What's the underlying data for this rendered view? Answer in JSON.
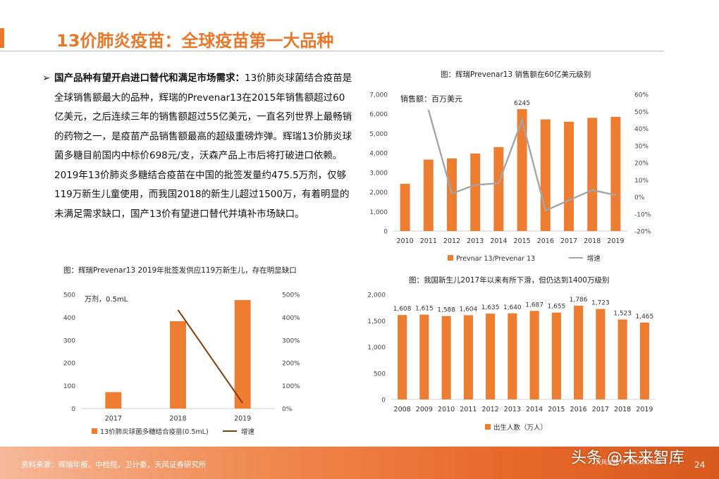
{
  "header": {
    "title": "13价肺炎疫苗：全球疫苗第一大品种",
    "accent": "#e8782a"
  },
  "body": {
    "bullet": "➢",
    "lead": "国产品种有望开启进口替代和满足市场需求：",
    "text": "13价肺炎球菌结合疫苗是全球销售额最大的品种，辉瑞的Prevenar13在2015年销售额超过60亿美元，之后连续三年的销售额超过55亿美元，一直名列世界上最畅销的药物之一，是疫苗产品销售额最高的超级重磅炸弹。辉瑞13价肺炎球菌多糖目前国内中标价698元/支，沃森产品上市后将打破进口依赖。2019年13价肺炎多糖结合疫苗在中国的批签发量约475.5万剂，仅够119万新生儿童使用，而我国2018的新生儿超过1500万，有着明显的未满足需求缺口，国产13价有望进口替代并填补市场缺口。"
  },
  "footer": {
    "source": "资料来源：辉瑞年报，中检院，卫计委，天风证券研究所",
    "logo_text": "天风证券 TF SECURITIES",
    "page_number": "24",
    "watermark": "头条 @未来智库"
  },
  "chart_data": [
    {
      "type": "bar",
      "caption": "图：辉瑞Prevenar13 销售额在60亿美元级别",
      "annotation": "销售额：百万美元",
      "categories": [
        "2010",
        "2011",
        "2012",
        "2013",
        "2014",
        "2015",
        "2016",
        "2017",
        "2018",
        "2019"
      ],
      "series": [
        {
          "name": "Prevnar 13/Prevenar 13",
          "type": "bar",
          "axis": "left",
          "color": "#ed7d31",
          "values": [
            2420,
            3660,
            3720,
            3970,
            4300,
            6245,
            5720,
            5600,
            5800,
            5850
          ]
        },
        {
          "name": "增速",
          "type": "line",
          "axis": "right",
          "color": "#a5a5a5",
          "values": [
            null,
            51,
            2,
            7,
            8,
            45,
            -8,
            -2,
            4,
            1
          ]
        }
      ],
      "data_labels": [
        {
          "index": 5,
          "text": "6245"
        }
      ],
      "ylim_left": [
        0,
        7000
      ],
      "yticks_left": [
        "0",
        "1,000",
        "2,000",
        "3,000",
        "4,000",
        "5,000",
        "6,000",
        "7,000"
      ],
      "ylim_right": [
        -20,
        60
      ],
      "yticks_right": [
        "-20%",
        "-10%",
        "0%",
        "10%",
        "20%",
        "30%",
        "40%",
        "50%",
        "60%"
      ],
      "legend": "bottom"
    },
    {
      "type": "bar",
      "caption": "图：辉瑞Prevenar13 2019年批签发供应119万新生儿，存在明显缺口",
      "annotation": "万剂，0.5mL",
      "categories": [
        "2017",
        "2018",
        "2019"
      ],
      "series": [
        {
          "name": "13价肺炎球菌多糖结合疫苗(0.5mL)",
          "type": "bar",
          "axis": "left",
          "color": "#ed7d31",
          "values": [
            72,
            383,
            475.5
          ]
        },
        {
          "name": "增速",
          "type": "line",
          "axis": "right",
          "color": "#843c0c",
          "values": [
            null,
            432,
            24
          ]
        }
      ],
      "ylim_left": [
        0,
        500
      ],
      "yticks_left": [
        "0",
        "100",
        "200",
        "300",
        "400",
        "500"
      ],
      "ylim_right": [
        0,
        500
      ],
      "yticks_right": [
        "0%",
        "100%",
        "200%",
        "300%",
        "400%",
        "500%"
      ],
      "legend": "bottom"
    },
    {
      "type": "bar",
      "caption": "图：我国新生儿2017年以来有所下滑，但仍达到1400万级别",
      "categories": [
        "2008",
        "2009",
        "2010",
        "2011",
        "2012",
        "2013",
        "2014",
        "2015",
        "2016",
        "2017",
        "2018",
        "2019"
      ],
      "series": [
        {
          "name": "出生人数（万人）",
          "type": "bar",
          "axis": "left",
          "color": "#ed7d31",
          "values": [
            1608,
            1615,
            1588,
            1604,
            1635,
            1640,
            1687,
            1655,
            1786,
            1723,
            1523,
            1465
          ]
        }
      ],
      "data_labels": [
        "1,608",
        "1,615",
        "1,588",
        "1,604",
        "1,635",
        "1,640",
        "1,687",
        "1,655",
        "1,786",
        "1,723",
        "1,523",
        "1,465"
      ],
      "ylim_left": [
        0,
        2000
      ],
      "yticks_left": [
        "0",
        "500",
        "1,000",
        "1,500",
        "2,000"
      ],
      "legend": "bottom"
    }
  ]
}
